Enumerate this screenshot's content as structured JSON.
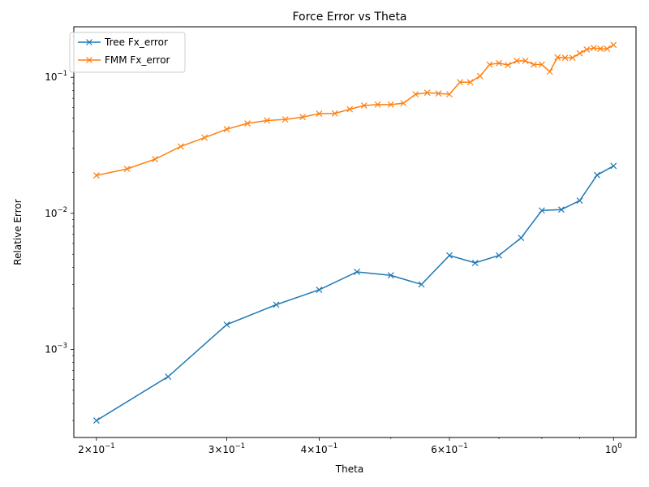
{
  "chart_data": {
    "type": "line",
    "title": "Force Error vs Theta",
    "xlabel": "Theta",
    "ylabel": "Relative Error",
    "xscale": "log",
    "yscale": "log",
    "xlim": [
      0.1864,
      1.0725
    ],
    "ylim": [
      0.000225,
      0.235
    ],
    "grid": false,
    "legend_position": "top-left",
    "x_ticks": [
      {
        "value": 0.2,
        "base": "2×10",
        "exp": "−1"
      },
      {
        "value": 0.3,
        "base": "3×10",
        "exp": "−1"
      },
      {
        "value": 0.4,
        "base": "4×10",
        "exp": "−1"
      },
      {
        "value": 0.6,
        "base": "6×10",
        "exp": "−1"
      },
      {
        "value": 1.0,
        "base": "10",
        "exp": "0"
      }
    ],
    "y_ticks": [
      {
        "value": 0.001,
        "base": "10",
        "exp": "−3"
      },
      {
        "value": 0.01,
        "base": "10",
        "exp": "−2"
      },
      {
        "value": 0.1,
        "base": "10",
        "exp": "−1"
      }
    ],
    "series": [
      {
        "name": "Tree Fx_error",
        "color": "#1f77b4",
        "marker": "x",
        "points": [
          [
            0.2,
            0.0003
          ],
          [
            0.25,
            0.00063
          ],
          [
            0.3,
            0.00152
          ],
          [
            0.35,
            0.00213
          ],
          [
            0.4,
            0.00274
          ],
          [
            0.45,
            0.00371
          ],
          [
            0.5,
            0.0035
          ],
          [
            0.55,
            0.003
          ],
          [
            0.6,
            0.0049
          ],
          [
            0.65,
            0.00432
          ],
          [
            0.7,
            0.0049
          ],
          [
            0.75,
            0.0066
          ],
          [
            0.8,
            0.0105
          ],
          [
            0.85,
            0.01065
          ],
          [
            0.9,
            0.0124
          ],
          [
            0.95,
            0.0191
          ],
          [
            1.0,
            0.0223
          ]
        ]
      },
      {
        "name": "FMM Fx_error",
        "color": "#ff7f0e",
        "marker": "x",
        "points": [
          [
            0.2,
            0.019
          ],
          [
            0.22,
            0.0212
          ],
          [
            0.24,
            0.025
          ],
          [
            0.26,
            0.031
          ],
          [
            0.28,
            0.036
          ],
          [
            0.3,
            0.0415
          ],
          [
            0.32,
            0.0458
          ],
          [
            0.34,
            0.0481
          ],
          [
            0.36,
            0.049
          ],
          [
            0.38,
            0.051
          ],
          [
            0.4,
            0.054
          ],
          [
            0.42,
            0.0542
          ],
          [
            0.44,
            0.0582
          ],
          [
            0.46,
            0.062
          ],
          [
            0.48,
            0.063
          ],
          [
            0.5,
            0.063
          ],
          [
            0.52,
            0.0645
          ],
          [
            0.54,
            0.075
          ],
          [
            0.56,
            0.077
          ],
          [
            0.58,
            0.076
          ],
          [
            0.6,
            0.075
          ],
          [
            0.62,
            0.092
          ],
          [
            0.64,
            0.092
          ],
          [
            0.66,
            0.102
          ],
          [
            0.68,
            0.124
          ],
          [
            0.7,
            0.127
          ],
          [
            0.72,
            0.123
          ],
          [
            0.74,
            0.132
          ],
          [
            0.76,
            0.132
          ],
          [
            0.78,
            0.124
          ],
          [
            0.8,
            0.124
          ],
          [
            0.82,
            0.11
          ],
          [
            0.84,
            0.14
          ],
          [
            0.86,
            0.139
          ],
          [
            0.88,
            0.139
          ],
          [
            0.9,
            0.15
          ],
          [
            0.92,
            0.16
          ],
          [
            0.94,
            0.164
          ],
          [
            0.96,
            0.162
          ],
          [
            0.98,
            0.162
          ],
          [
            1.0,
            0.173
          ]
        ]
      }
    ]
  }
}
